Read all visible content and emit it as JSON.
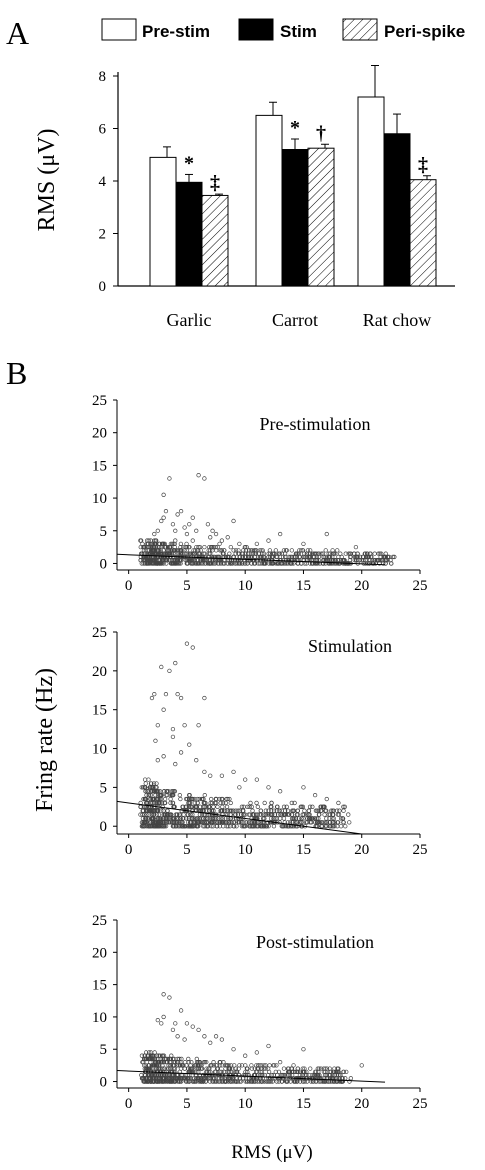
{
  "panels": {
    "a": "A",
    "b": "B"
  },
  "colors": {
    "pre_stim": "#ffffff",
    "stim": "#000000",
    "peri_spike": "hatch",
    "points": "#555555"
  },
  "chart_data": [
    {
      "type": "bar",
      "title": "",
      "categories": [
        "Garlic",
        "Carrot",
        "Rat chow"
      ],
      "series": [
        {
          "name": "Pre-stim",
          "values": [
            4.9,
            6.5,
            7.2
          ],
          "errors": [
            0.4,
            0.5,
            1.2
          ]
        },
        {
          "name": "Stim",
          "values": [
            3.95,
            5.2,
            5.8
          ],
          "errors": [
            0.3,
            0.4,
            0.75
          ]
        },
        {
          "name": "Peri-spike",
          "values": [
            3.45,
            5.25,
            4.05
          ],
          "errors": [
            0.05,
            0.15,
            0.15
          ]
        }
      ],
      "significance": [
        {
          "category": "Garlic",
          "series": "Stim",
          "mark": "*"
        },
        {
          "category": "Garlic",
          "series": "Peri-spike",
          "mark": "‡"
        },
        {
          "category": "Carrot",
          "series": "Stim",
          "mark": "*"
        },
        {
          "category": "Carrot",
          "series": "Peri-spike",
          "mark": "†"
        },
        {
          "category": "Rat chow",
          "series": "Peri-spike",
          "mark": "‡"
        }
      ],
      "ylabel": "RMS (μV)",
      "ylim": [
        0,
        8
      ],
      "yticks": [
        0,
        2,
        4,
        6,
        8
      ],
      "legend": [
        "Pre-stim",
        "Stim",
        "Peri-spike"
      ],
      "legend_position": "top"
    },
    {
      "type": "scatter",
      "title": "Pre-stimulation",
      "xlim": [
        -1,
        25
      ],
      "ylim": [
        -1,
        25
      ],
      "xticks": [
        0,
        5,
        10,
        15,
        20,
        25
      ],
      "yticks": [
        0,
        5,
        10,
        15,
        20,
        25
      ],
      "points": [
        [
          1.5,
          1
        ],
        [
          2,
          2
        ],
        [
          2.2,
          4.5
        ],
        [
          2.5,
          5
        ],
        [
          2.8,
          6.5
        ],
        [
          3,
          7
        ],
        [
          3.2,
          8
        ],
        [
          3,
          10.5
        ],
        [
          3.5,
          13
        ],
        [
          3.8,
          6
        ],
        [
          4,
          5
        ],
        [
          4.2,
          7.5
        ],
        [
          4.5,
          8
        ],
        [
          4.8,
          5.5
        ],
        [
          5,
          4.5
        ],
        [
          5.2,
          6
        ],
        [
          5.5,
          7
        ],
        [
          5.8,
          5
        ],
        [
          6,
          13.5
        ],
        [
          6.5,
          13
        ],
        [
          6.8,
          6
        ],
        [
          7,
          4
        ],
        [
          7.2,
          5
        ],
        [
          7.5,
          4.5
        ],
        [
          7.8,
          3
        ],
        [
          8,
          3.5
        ],
        [
          8.5,
          4
        ],
        [
          9,
          6.5
        ],
        [
          9.5,
          3
        ],
        [
          10,
          2.5
        ],
        [
          10.5,
          2
        ],
        [
          11,
          3
        ],
        [
          11.5,
          2
        ],
        [
          12,
          3.5
        ],
        [
          12.5,
          1.5
        ],
        [
          13,
          4.5
        ],
        [
          13.5,
          2
        ],
        [
          14,
          1
        ],
        [
          15,
          3
        ],
        [
          16,
          1.5
        ],
        [
          17,
          4.5
        ],
        [
          17.5,
          2
        ],
        [
          18,
          1
        ],
        [
          19,
          1.5
        ],
        [
          19.5,
          2.5
        ],
        [
          20,
          0.5
        ],
        [
          20.5,
          0
        ],
        [
          21,
          0
        ],
        [
          3,
          3
        ],
        [
          3.5,
          2.5
        ],
        [
          4,
          3.5
        ],
        [
          4.5,
          2
        ],
        [
          5,
          2.5
        ],
        [
          5.5,
          3.5
        ],
        [
          6,
          1.5
        ],
        [
          6.5,
          2.5
        ],
        [
          7,
          1.5
        ],
        [
          8,
          2
        ],
        [
          9,
          1
        ],
        [
          10,
          1
        ],
        [
          11,
          0.5
        ],
        [
          12,
          1
        ],
        [
          13,
          0.5
        ],
        [
          14,
          0.5
        ],
        [
          15,
          0.5
        ],
        [
          16,
          0
        ],
        [
          17,
          0.5
        ],
        [
          18,
          0
        ]
      ],
      "points_dense": {
        "x_range": [
          1,
          22
        ],
        "y_range": [
          0,
          4
        ]
      },
      "regression": {
        "x": [
          -1,
          22
        ],
        "y": [
          1.4,
          -0.2
        ]
      }
    },
    {
      "type": "scatter",
      "title": "Stimulation",
      "xlim": [
        -1,
        25
      ],
      "ylim": [
        -1,
        25
      ],
      "xticks": [
        0,
        5,
        10,
        15,
        20,
        25
      ],
      "yticks": [
        0,
        5,
        10,
        15,
        20,
        25
      ],
      "ylabel": "Fring rate (Hz)",
      "points": [
        [
          2,
          16.5
        ],
        [
          2.2,
          17
        ],
        [
          2.5,
          13
        ],
        [
          2.8,
          20.5
        ],
        [
          3,
          15
        ],
        [
          3.2,
          17
        ],
        [
          3.5,
          20
        ],
        [
          3.8,
          11.5
        ],
        [
          4,
          21
        ],
        [
          4.2,
          17
        ],
        [
          4.5,
          16.5
        ],
        [
          5,
          23.5
        ],
        [
          5.2,
          10.5
        ],
        [
          5.5,
          23
        ],
        [
          6,
          13
        ],
        [
          6.5,
          16.5
        ],
        [
          2.3,
          11
        ],
        [
          3.8,
          12.5
        ],
        [
          4.8,
          13
        ],
        [
          2.5,
          8.5
        ],
        [
          3,
          9
        ],
        [
          4,
          8
        ],
        [
          4.5,
          9.5
        ],
        [
          5.8,
          8.5
        ],
        [
          6.5,
          7
        ],
        [
          7,
          6.5
        ],
        [
          8,
          6.5
        ],
        [
          9,
          7
        ],
        [
          9.5,
          5
        ],
        [
          10,
          6
        ],
        [
          11,
          6
        ],
        [
          12,
          5
        ],
        [
          13,
          4.5
        ],
        [
          14,
          3
        ],
        [
          15,
          5
        ],
        [
          16,
          4
        ],
        [
          17,
          3.5
        ],
        [
          18,
          3
        ],
        [
          12,
          2
        ],
        [
          14,
          1.5
        ],
        [
          15,
          1
        ],
        [
          10,
          1.5
        ],
        [
          11,
          1
        ],
        [
          13,
          1
        ],
        [
          16,
          1
        ]
      ],
      "points_dense": {
        "x_range": [
          1,
          18
        ],
        "y_range": [
          0,
          6
        ]
      },
      "regression": {
        "x": [
          -1,
          20
        ],
        "y": [
          3.2,
          -1
        ]
      }
    },
    {
      "type": "scatter",
      "title": "Post-stimulation",
      "xlim": [
        -1,
        25
      ],
      "ylim": [
        -1,
        25
      ],
      "xticks": [
        0,
        5,
        10,
        15,
        20,
        25
      ],
      "yticks": [
        0,
        5,
        10,
        15,
        20,
        25
      ],
      "xlabel": "RMS (μV)",
      "points": [
        [
          2.5,
          9.5
        ],
        [
          3,
          13.5
        ],
        [
          3.5,
          13
        ],
        [
          3.8,
          8
        ],
        [
          4,
          9
        ],
        [
          4.5,
          11
        ],
        [
          5,
          9
        ],
        [
          5.5,
          8.5
        ],
        [
          6,
          8
        ],
        [
          6.5,
          7
        ],
        [
          7,
          6
        ],
        [
          7.5,
          7
        ],
        [
          8,
          6.5
        ],
        [
          9,
          5
        ],
        [
          10,
          4
        ],
        [
          11,
          4.5
        ],
        [
          12,
          5.5
        ],
        [
          13,
          3
        ],
        [
          14,
          2
        ],
        [
          15,
          5
        ],
        [
          16,
          1.5
        ],
        [
          17,
          1
        ],
        [
          18,
          1.5
        ],
        [
          20,
          2.5
        ],
        [
          3,
          10
        ],
        [
          2.8,
          9
        ],
        [
          4.2,
          7
        ],
        [
          4.8,
          6.5
        ]
      ],
      "points_dense": {
        "x_range": [
          1,
          18
        ],
        "y_range": [
          0,
          5
        ]
      },
      "regression": {
        "x": [
          -1,
          22
        ],
        "y": [
          1.7,
          -0.1
        ]
      }
    }
  ]
}
